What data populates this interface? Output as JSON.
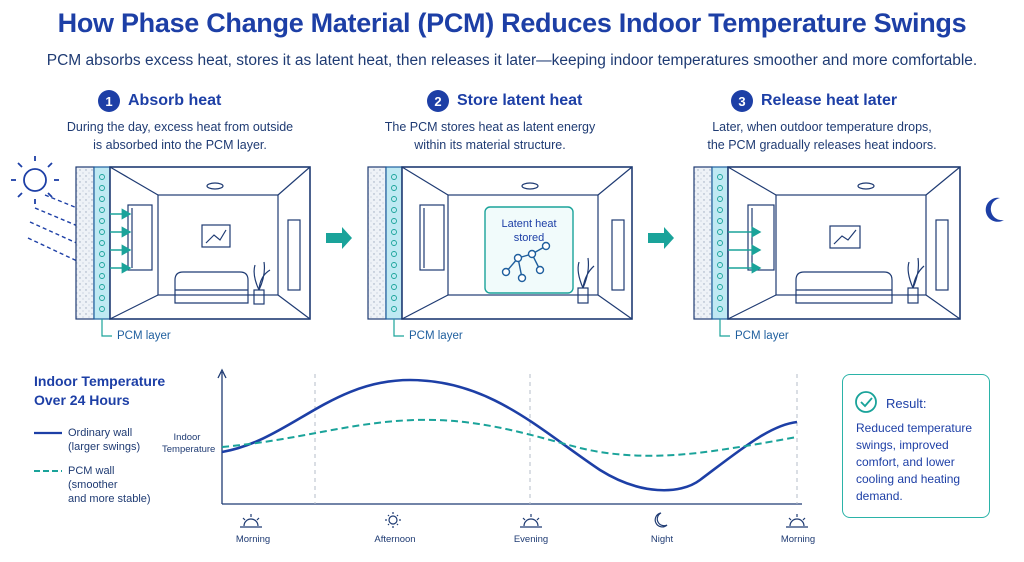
{
  "title": "How Phase Change Material (PCM) Reduces Indoor Temperature Swings",
  "subtitle": "PCM absorbs excess heat, stores it as latent heat, then releases it later—keeping indoor temperatures smoother and more comfortable.",
  "steps": [
    {
      "number": "1",
      "heading": "Absorb heat",
      "desc_line1": "During the day, excess heat from outside",
      "desc_line2": "is absorbed into the PCM layer.",
      "pcm_label": "PCM layer"
    },
    {
      "number": "2",
      "heading": "Store latent heat",
      "desc_line1": "The PCM stores heat as latent energy",
      "desc_line2": "within its material structure.",
      "pcm_label": "PCM layer",
      "box_line1": "Latent heat",
      "box_line2": "stored"
    },
    {
      "number": "3",
      "heading": "Release heat later",
      "desc_line1": "Later, when outdoor temperature drops,",
      "desc_line2": "the PCM gradually releases heat indoors.",
      "pcm_label": "PCM layer"
    }
  ],
  "chart": {
    "title_line1": "Indoor Temperature",
    "title_line2": "Over 24 Hours",
    "ylabel_line1": "Indoor",
    "ylabel_line2": "Temperature",
    "legend": [
      {
        "line1": "Ordinary wall",
        "line2": "(larger swings)",
        "line3": "",
        "color": "#1d3fa6"
      },
      {
        "line1": "PCM wall",
        "line2": "(smoother",
        "line3": "and more stable)",
        "color": "#1aa39a"
      }
    ],
    "ticks": [
      "Morning",
      "Afternoon",
      "Evening",
      "Night",
      "Morning"
    ],
    "tick_icons": [
      "sunrise-icon",
      "sun-icon",
      "sunset-icon",
      "moon-icon",
      "sunrise-icon"
    ]
  },
  "result": {
    "title": "Result:",
    "text": "Reduced temperature swings, improved comfort, and lower cooling and heating demand."
  },
  "colors": {
    "primary": "#1d3fa6",
    "teal": "#1aa39a",
    "pcm_fill": "#bfe9f3"
  }
}
